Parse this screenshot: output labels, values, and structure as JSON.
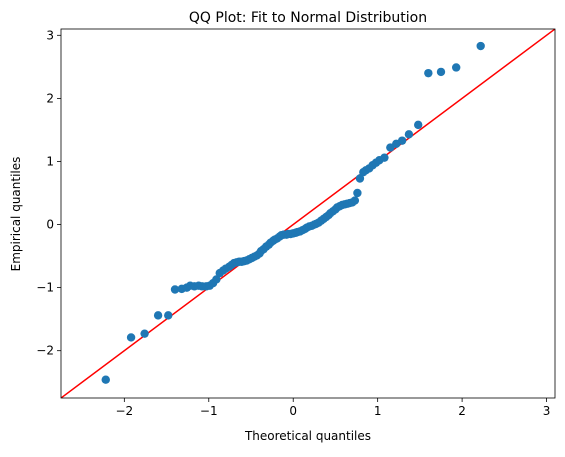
{
  "chart_data": {
    "type": "scatter",
    "title": "QQ Plot: Fit to Normal Distribution",
    "xlabel": "Theoretical quantiles",
    "ylabel": "Empirical quantiles",
    "xlim": [
      -2.75,
      3.1
    ],
    "ylim": [
      -2.75,
      3.1
    ],
    "xticks": [
      -2,
      -1,
      0,
      1,
      2,
      3
    ],
    "yticks": [
      -2,
      -1,
      0,
      1,
      2,
      3
    ],
    "xtick_labels": [
      "−2",
      "−1",
      "0",
      "1",
      "2",
      "3"
    ],
    "ytick_labels": [
      "−2",
      "−1",
      "0",
      "1",
      "2",
      "3"
    ],
    "grid": false,
    "colors": {
      "points": "#1f77b4",
      "line": "#ff0000"
    },
    "reference_line": {
      "slope": 1,
      "intercept": 0
    },
    "points": [
      [
        -2.22,
        -2.46
      ],
      [
        -1.92,
        -1.79
      ],
      [
        -1.76,
        -1.73
      ],
      [
        -1.6,
        -1.44
      ],
      [
        -1.48,
        -1.44
      ],
      [
        -1.4,
        -1.03
      ],
      [
        -1.32,
        -1.02
      ],
      [
        -1.26,
        -1.0
      ],
      [
        -1.22,
        -0.97
      ],
      [
        -1.17,
        -0.98
      ],
      [
        -1.12,
        -0.97
      ],
      [
        -1.08,
        -0.98
      ],
      [
        -1.03,
        -0.98
      ],
      [
        -0.99,
        -0.97
      ],
      [
        -0.95,
        -0.93
      ],
      [
        -0.91,
        -0.87
      ],
      [
        -0.87,
        -0.77
      ],
      [
        -0.83,
        -0.73
      ],
      [
        -0.8,
        -0.7
      ],
      [
        -0.76,
        -0.67
      ],
      [
        -0.73,
        -0.64
      ],
      [
        -0.7,
        -0.61
      ],
      [
        -0.67,
        -0.6
      ],
      [
        -0.64,
        -0.59
      ],
      [
        -0.61,
        -0.59
      ],
      [
        -0.58,
        -0.58
      ],
      [
        -0.55,
        -0.57
      ],
      [
        -0.52,
        -0.55
      ],
      [
        -0.49,
        -0.53
      ],
      [
        -0.46,
        -0.51
      ],
      [
        -0.43,
        -0.49
      ],
      [
        -0.4,
        -0.46
      ],
      [
        -0.38,
        -0.42
      ],
      [
        -0.35,
        -0.39
      ],
      [
        -0.32,
        -0.35
      ],
      [
        -0.29,
        -0.32
      ],
      [
        -0.27,
        -0.29
      ],
      [
        -0.24,
        -0.26
      ],
      [
        -0.22,
        -0.24
      ],
      [
        -0.19,
        -0.22
      ],
      [
        -0.16,
        -0.19
      ],
      [
        -0.14,
        -0.17
      ],
      [
        -0.11,
        -0.16
      ],
      [
        -0.08,
        -0.16
      ],
      [
        -0.06,
        -0.15
      ],
      [
        -0.03,
        -0.15
      ],
      [
        0.0,
        -0.14
      ],
      [
        0.03,
        -0.13
      ],
      [
        0.05,
        -0.12
      ],
      [
        0.08,
        -0.11
      ],
      [
        0.11,
        -0.09
      ],
      [
        0.14,
        -0.07
      ],
      [
        0.16,
        -0.05
      ],
      [
        0.19,
        -0.03
      ],
      [
        0.22,
        -0.02
      ],
      [
        0.25,
        0.0
      ],
      [
        0.27,
        0.01
      ],
      [
        0.3,
        0.03
      ],
      [
        0.33,
        0.06
      ],
      [
        0.36,
        0.09
      ],
      [
        0.39,
        0.12
      ],
      [
        0.42,
        0.15
      ],
      [
        0.44,
        0.18
      ],
      [
        0.47,
        0.21
      ],
      [
        0.5,
        0.24
      ],
      [
        0.52,
        0.27
      ],
      [
        0.55,
        0.29
      ],
      [
        0.58,
        0.31
      ],
      [
        0.61,
        0.32
      ],
      [
        0.64,
        0.33
      ],
      [
        0.67,
        0.34
      ],
      [
        0.7,
        0.35
      ],
      [
        0.73,
        0.38
      ],
      [
        0.76,
        0.5
      ],
      [
        0.79,
        0.73
      ],
      [
        0.83,
        0.83
      ],
      [
        0.86,
        0.86
      ],
      [
        0.9,
        0.89
      ],
      [
        0.94,
        0.94
      ],
      [
        0.98,
        0.98
      ],
      [
        1.02,
        1.02
      ],
      [
        1.08,
        1.06
      ],
      [
        1.15,
        1.22
      ],
      [
        1.22,
        1.28
      ],
      [
        1.29,
        1.33
      ],
      [
        1.37,
        1.43
      ],
      [
        1.48,
        1.58
      ],
      [
        1.6,
        2.4
      ],
      [
        1.75,
        2.42
      ],
      [
        1.93,
        2.49
      ],
      [
        2.22,
        2.83
      ]
    ]
  }
}
